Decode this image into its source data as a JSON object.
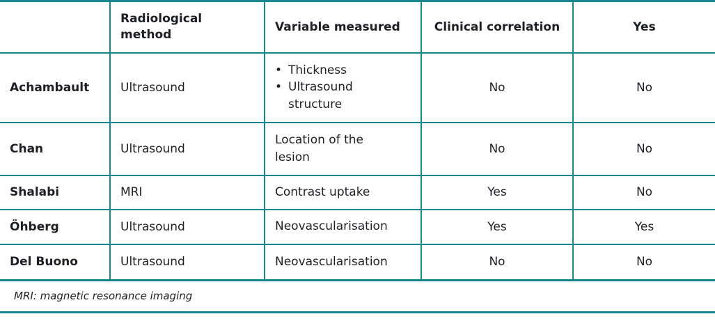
{
  "colors": {
    "accent_teal": "#17858E",
    "text": "#1F1F26",
    "background": "#FFFFFF"
  },
  "glyphs": {
    "bullet": "•"
  },
  "table": {
    "headers": [
      "",
      "Radiological method",
      "Variable measured",
      "Clinical correlation",
      "Yes"
    ],
    "rows": [
      {
        "label": "Achambault",
        "method": "Ultrasound",
        "variable_bullets": [
          "Thickness",
          "Ultrasound structure"
        ],
        "clinical_correlation": "No",
        "yes": "No"
      },
      {
        "label": "Chan",
        "method": "Ultrasound",
        "variable": "Location of the lesion",
        "clinical_correlation": "No",
        "yes": "No"
      },
      {
        "label": "Shalabi",
        "method": "MRI",
        "variable": "Contrast uptake",
        "clinical_correlation": "Yes",
        "yes": "No"
      },
      {
        "label": "Öhberg",
        "method": "Ultrasound",
        "variable": "Neovascularisation",
        "clinical_correlation": "Yes",
        "yes": "Yes"
      },
      {
        "label": "Del Buono",
        "method": "Ultrasound",
        "variable": "Neovascularisation",
        "clinical_correlation": "No",
        "yes": "No"
      }
    ],
    "footnote": "MRI: magnetic resonance imaging"
  }
}
